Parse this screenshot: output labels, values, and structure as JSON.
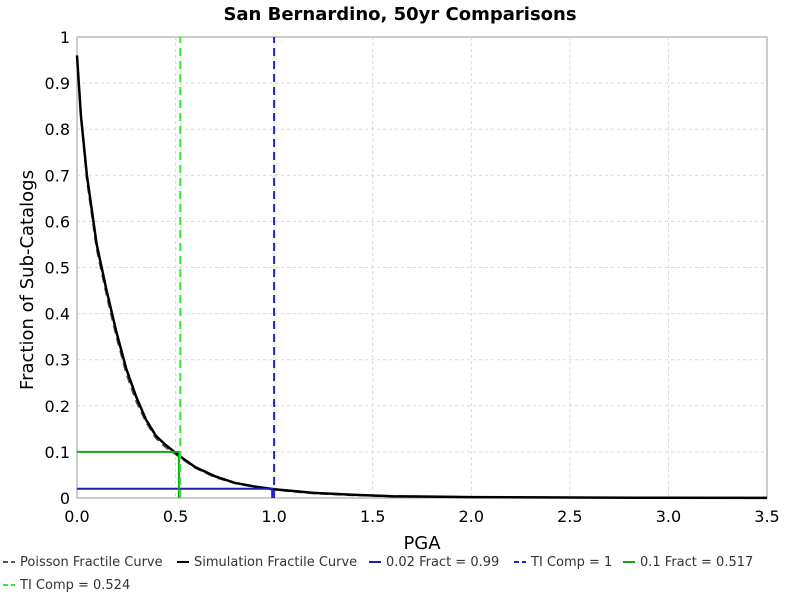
{
  "chart_data": {
    "type": "line",
    "title": "San Bernardino, 50yr Comparisons",
    "xlabel": "PGA",
    "ylabel": "Fraction of Sub-Catalogs",
    "xlim": [
      0.0,
      3.5
    ],
    "ylim": [
      0,
      1
    ],
    "x_ticks": [
      0.0,
      0.5,
      1.0,
      1.5,
      2.0,
      2.5,
      3.0,
      3.5
    ],
    "x_tick_labels": [
      "0.0",
      "0.5",
      "1.0",
      "1.5",
      "2.0",
      "2.5",
      "3.0",
      "3.5"
    ],
    "y_ticks": [
      0,
      0.1,
      0.2,
      0.3,
      0.4,
      0.5,
      0.6,
      0.7,
      0.8,
      0.9,
      1
    ],
    "y_tick_labels": [
      "0",
      "0.1",
      "0.2",
      "0.3",
      "0.4",
      "0.5",
      "0.6",
      "0.7",
      "0.8",
      "0.9",
      "1"
    ],
    "grid": true,
    "legend_position": "bottom",
    "series": [
      {
        "name": "Poisson Fractile Curve",
        "style": "dashed",
        "color": "#555555",
        "x": [
          0.0,
          0.02,
          0.05,
          0.1,
          0.15,
          0.2,
          0.25,
          0.3,
          0.35,
          0.4,
          0.45,
          0.5,
          0.55,
          0.6,
          0.7,
          0.8,
          0.9,
          1.0,
          1.2,
          1.4,
          1.6,
          1.8,
          2.0,
          2.5,
          3.0,
          3.5
        ],
        "y": [
          0.96,
          0.83,
          0.69,
          0.54,
          0.44,
          0.35,
          0.27,
          0.21,
          0.165,
          0.13,
          0.11,
          0.095,
          0.08,
          0.065,
          0.045,
          0.032,
          0.024,
          0.018,
          0.01,
          0.006,
          0.004,
          0.003,
          0.002,
          0.001,
          0.0005,
          0.0002
        ]
      },
      {
        "name": "Simulation Fractile Curve",
        "style": "solid",
        "color": "#000000",
        "x": [
          0.0,
          0.02,
          0.05,
          0.1,
          0.15,
          0.2,
          0.25,
          0.3,
          0.35,
          0.4,
          0.45,
          0.5,
          0.55,
          0.6,
          0.7,
          0.8,
          0.9,
          1.0,
          1.2,
          1.4,
          1.6,
          1.8,
          2.0,
          2.5,
          3.0,
          3.5
        ],
        "y": [
          0.96,
          0.83,
          0.7,
          0.55,
          0.45,
          0.36,
          0.28,
          0.22,
          0.17,
          0.135,
          0.115,
          0.098,
          0.082,
          0.067,
          0.047,
          0.033,
          0.025,
          0.019,
          0.011,
          0.007,
          0.004,
          0.003,
          0.002,
          0.001,
          0.0005,
          0.0002
        ]
      },
      {
        "name": "0.02 Fract = 0.99",
        "style": "solid",
        "color": "#1f1fb4",
        "x": [
          0.0,
          0.99,
          0.99
        ],
        "y": [
          0.02,
          0.02,
          0.0
        ]
      },
      {
        "name": "TI Comp = 1",
        "style": "dashed",
        "color": "#2121d6",
        "x": [
          1.0,
          1.0
        ],
        "y": [
          0.0,
          1.0
        ]
      },
      {
        "name": "0.1 Fract = 0.517",
        "style": "solid",
        "color": "#13a813",
        "x": [
          0.0,
          0.517,
          0.517
        ],
        "y": [
          0.1,
          0.1,
          0.0
        ]
      },
      {
        "name": "TI Comp = 0.524",
        "style": "dashed",
        "color": "#33e833",
        "x": [
          0.524,
          0.524
        ],
        "y": [
          0.0,
          1.0
        ]
      }
    ]
  }
}
